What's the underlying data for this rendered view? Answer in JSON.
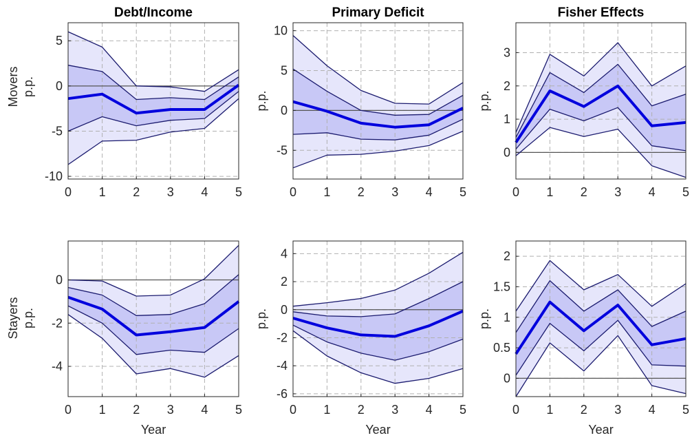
{
  "colors": {
    "outer_band": "#e6e6fb",
    "inner_band": "#c8c8f6",
    "band_line": "#1a1a6e",
    "median": "#0000dd",
    "zero_line": "#555555",
    "grid": "#b0b0b0"
  },
  "row_labels": [
    [
      "Movers",
      "p.p."
    ],
    [
      "Stayers",
      "p.p."
    ]
  ],
  "chart_data": [
    {
      "type": "area",
      "title": "Debt/Income",
      "ylabel": "",
      "xlabel": "",
      "x": [
        0,
        1,
        2,
        3,
        4,
        5
      ],
      "xlim": [
        0,
        5
      ],
      "ylim": [
        -10.3,
        7
      ],
      "yticks": [
        5,
        0,
        -5,
        -10
      ],
      "ytick_labels": [
        "5",
        "0",
        "-5",
        "-10"
      ],
      "xtick_labels": [
        "0",
        "1",
        "2",
        "3",
        "4",
        "5"
      ],
      "series": [
        {
          "role": "upper_outer",
          "values": [
            6.0,
            4.3,
            0.0,
            -0.1,
            -0.6,
            1.8
          ]
        },
        {
          "role": "upper_inner",
          "values": [
            2.3,
            1.6,
            -1.5,
            -1.3,
            -1.5,
            1.0
          ]
        },
        {
          "role": "median",
          "values": [
            -1.4,
            -0.9,
            -3.0,
            -2.6,
            -2.6,
            0.1
          ]
        },
        {
          "role": "lower_inner",
          "values": [
            -5.0,
            -3.4,
            -4.4,
            -3.8,
            -3.6,
            -0.6
          ]
        },
        {
          "role": "lower_outer",
          "values": [
            -8.7,
            -6.1,
            -6.0,
            -5.1,
            -4.7,
            -1.4
          ]
        }
      ]
    },
    {
      "type": "area",
      "title": "Primary Deficit",
      "ylabel": "",
      "xlabel": "",
      "x": [
        0,
        1,
        2,
        3,
        4,
        5
      ],
      "xlim": [
        0,
        5
      ],
      "ylim": [
        -8.6,
        11
      ],
      "yticks": [
        10,
        5,
        0,
        -5
      ],
      "ytick_labels": [
        "10",
        "5",
        "0",
        "-5"
      ],
      "xtick_labels": [
        "0",
        "1",
        "2",
        "3",
        "4",
        "5"
      ],
      "series": [
        {
          "role": "upper_outer",
          "values": [
            9.4,
            5.6,
            2.5,
            0.9,
            0.8,
            3.5
          ]
        },
        {
          "role": "upper_inner",
          "values": [
            5.2,
            2.4,
            0.0,
            -0.6,
            -0.5,
            1.9
          ]
        },
        {
          "role": "median",
          "values": [
            1.1,
            -0.1,
            -1.6,
            -2.1,
            -1.8,
            0.3
          ]
        },
        {
          "role": "lower_inner",
          "values": [
            -3.0,
            -2.8,
            -3.6,
            -3.7,
            -3.1,
            -1.1
          ]
        },
        {
          "role": "lower_outer",
          "values": [
            -7.2,
            -5.6,
            -5.5,
            -5.1,
            -4.4,
            -2.6
          ]
        }
      ]
    },
    {
      "type": "area",
      "title": "Fisher Effects",
      "ylabel": "",
      "xlabel": "",
      "x": [
        0,
        1,
        2,
        3,
        4,
        5
      ],
      "xlim": [
        0,
        5
      ],
      "ylim": [
        -0.8,
        3.9
      ],
      "yticks": [
        3,
        2,
        1,
        0
      ],
      "ytick_labels": [
        "3",
        "2",
        "1",
        "0"
      ],
      "xtick_labels": [
        "0",
        "1",
        "2",
        "3",
        "4",
        "5"
      ],
      "series": [
        {
          "role": "upper_outer",
          "values": [
            0.6,
            2.95,
            2.3,
            3.3,
            2.0,
            2.6
          ]
        },
        {
          "role": "upper_inner",
          "values": [
            0.45,
            2.4,
            1.8,
            2.65,
            1.4,
            1.75
          ]
        },
        {
          "role": "median",
          "values": [
            0.3,
            1.85,
            1.38,
            2.0,
            0.8,
            0.9
          ]
        },
        {
          "role": "lower_inner",
          "values": [
            0.1,
            1.3,
            0.95,
            1.35,
            0.2,
            0.05
          ]
        },
        {
          "role": "lower_outer",
          "values": [
            -0.1,
            0.75,
            0.48,
            0.7,
            -0.4,
            -0.75
          ]
        }
      ]
    },
    {
      "type": "area",
      "title": "",
      "ylabel": "",
      "xlabel": "Year",
      "x": [
        0,
        1,
        2,
        3,
        4,
        5
      ],
      "xlim": [
        0,
        5
      ],
      "ylim": [
        -5.4,
        1.8
      ],
      "yticks": [
        0,
        -2,
        -4
      ],
      "ytick_labels": [
        "0",
        "-2",
        "-4"
      ],
      "xtick_labels": [
        "0",
        "1",
        "2",
        "3",
        "4",
        "5"
      ],
      "series": [
        {
          "role": "upper_outer",
          "values": [
            0.0,
            -0.05,
            -0.75,
            -0.7,
            0.05,
            1.6
          ]
        },
        {
          "role": "upper_inner",
          "values": [
            -0.35,
            -0.7,
            -1.65,
            -1.6,
            -1.1,
            0.25
          ]
        },
        {
          "role": "median",
          "values": [
            -0.8,
            -1.35,
            -2.55,
            -2.4,
            -2.2,
            -1.0
          ]
        },
        {
          "role": "lower_inner",
          "values": [
            -1.2,
            -2.0,
            -3.45,
            -3.25,
            -3.35,
            -2.25
          ]
        },
        {
          "role": "lower_outer",
          "values": [
            -1.6,
            -2.7,
            -4.35,
            -4.1,
            -4.5,
            -3.5
          ]
        }
      ]
    },
    {
      "type": "area",
      "title": "",
      "ylabel": "",
      "xlabel": "Year",
      "x": [
        0,
        1,
        2,
        3,
        4,
        5
      ],
      "xlim": [
        0,
        5
      ],
      "ylim": [
        -6.2,
        4.9
      ],
      "yticks": [
        4,
        2,
        0,
        -2,
        -4,
        -6
      ],
      "ytick_labels": [
        "4",
        "2",
        "0",
        "-2",
        "-4",
        "-6"
      ],
      "xtick_labels": [
        "0",
        "1",
        "2",
        "3",
        "4",
        "5"
      ],
      "series": [
        {
          "role": "upper_outer",
          "values": [
            0.25,
            0.5,
            0.8,
            1.4,
            2.6,
            4.1
          ]
        },
        {
          "role": "upper_inner",
          "values": [
            -0.15,
            -0.45,
            -0.5,
            -0.3,
            0.8,
            2.0
          ]
        },
        {
          "role": "median",
          "values": [
            -0.6,
            -1.3,
            -1.8,
            -1.9,
            -1.15,
            -0.1
          ]
        },
        {
          "role": "lower_inner",
          "values": [
            -1.1,
            -2.3,
            -3.1,
            -3.6,
            -3.0,
            -2.1
          ]
        },
        {
          "role": "lower_outer",
          "values": [
            -1.5,
            -3.3,
            -4.5,
            -5.25,
            -4.9,
            -4.2
          ]
        }
      ]
    },
    {
      "type": "area",
      "title": "",
      "ylabel": "",
      "xlabel": "Year",
      "x": [
        0,
        1,
        2,
        3,
        4,
        5
      ],
      "xlim": [
        0,
        5
      ],
      "ylim": [
        -0.3,
        2.25
      ],
      "yticks": [
        2,
        1.5,
        1,
        0.5,
        0
      ],
      "ytick_labels": [
        "2",
        "1.5",
        "1",
        "0.5",
        "0"
      ],
      "xtick_labels": [
        "0",
        "1",
        "2",
        "3",
        "4",
        "5"
      ],
      "series": [
        {
          "role": "upper_outer",
          "values": [
            1.1,
            1.93,
            1.45,
            1.7,
            1.18,
            1.55
          ]
        },
        {
          "role": "upper_inner",
          "values": [
            0.75,
            1.6,
            1.1,
            1.45,
            0.85,
            1.1
          ]
        },
        {
          "role": "median",
          "values": [
            0.4,
            1.25,
            0.78,
            1.2,
            0.55,
            0.65
          ]
        },
        {
          "role": "lower_inner",
          "values": [
            0.05,
            0.9,
            0.45,
            0.95,
            0.22,
            0.2
          ]
        },
        {
          "role": "lower_outer",
          "values": [
            -0.3,
            0.58,
            0.12,
            0.7,
            -0.12,
            -0.25
          ]
        }
      ]
    }
  ]
}
